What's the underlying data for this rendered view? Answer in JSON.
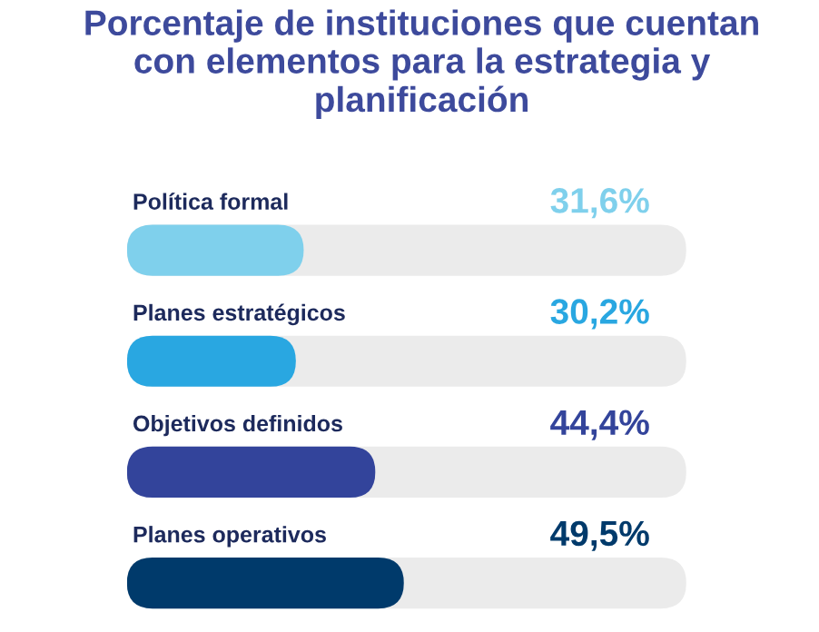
{
  "chart_data": {
    "type": "bar",
    "orientation": "horizontal",
    "title": "Porcentaje de instituciones que cuentan\ncon elementos para la estrategia y\nplanificación",
    "categories": [
      "Política formal",
      "Planes estratégicos",
      "Objetivos definidos",
      "Planes operativos"
    ],
    "values": [
      31.6,
      30.2,
      44.4,
      49.5
    ],
    "value_labels": [
      "31,6%",
      "30,2%",
      "44,4%",
      "49,5%"
    ],
    "colors": [
      "#7fd0ec",
      "#29a7e1",
      "#33449b",
      "#003a6b"
    ],
    "xlim": [
      0,
      100
    ]
  }
}
